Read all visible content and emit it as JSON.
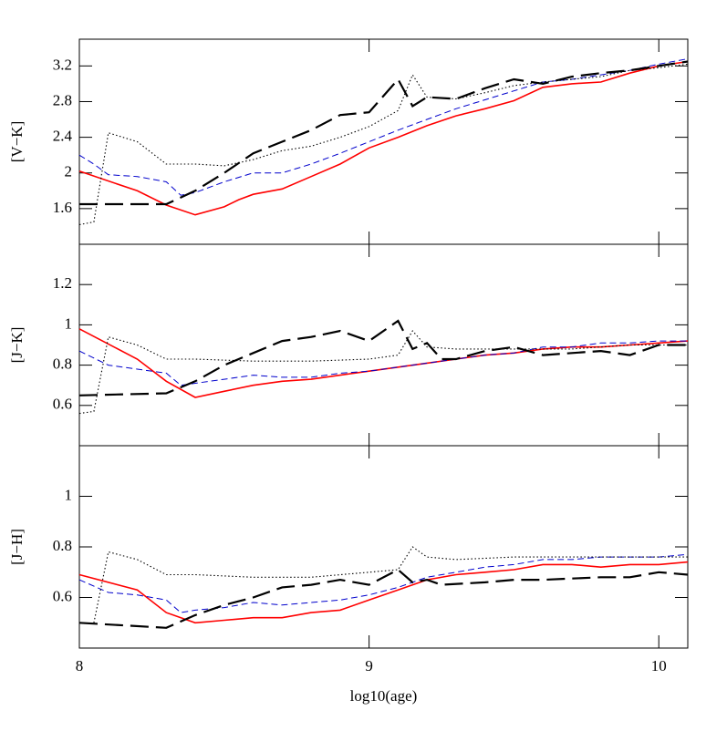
{
  "chart_data": [
    {
      "type": "line",
      "ylabel": "[V−K]",
      "xlim": [
        8,
        10.1
      ],
      "xticks": [
        8,
        9,
        10
      ],
      "ylim": [
        1.2,
        3.5
      ],
      "yticks": [
        1.6,
        2,
        2.4,
        2.8,
        3.2
      ],
      "series": [
        {
          "color": "#ff0000",
          "style": "solid",
          "x": [
            8.0,
            8.2,
            8.3,
            8.4,
            8.5,
            8.55,
            8.6,
            8.7,
            8.8,
            8.9,
            9.0,
            9.1,
            9.2,
            9.3,
            9.4,
            9.5,
            9.6,
            9.7,
            9.8,
            9.9,
            10.0,
            10.1
          ],
          "values": [
            2.02,
            1.8,
            1.64,
            1.53,
            1.62,
            1.7,
            1.76,
            1.82,
            1.96,
            2.1,
            2.28,
            2.4,
            2.53,
            2.64,
            2.72,
            2.81,
            2.96,
            3.0,
            3.02,
            3.12,
            3.2,
            3.25
          ]
        },
        {
          "color": "#0000cc",
          "style": "dashed",
          "x": [
            8.0,
            8.05,
            8.1,
            8.2,
            8.3,
            8.35,
            8.4,
            8.5,
            8.6,
            8.7,
            8.8,
            8.9,
            9.0,
            9.1,
            9.2,
            9.3,
            9.4,
            9.5,
            9.6,
            9.7,
            9.8,
            9.9,
            10.0,
            10.1
          ],
          "values": [
            2.2,
            2.1,
            1.98,
            1.96,
            1.9,
            1.75,
            1.78,
            1.9,
            2.0,
            2.0,
            2.1,
            2.22,
            2.35,
            2.48,
            2.6,
            2.72,
            2.82,
            2.92,
            3.02,
            3.05,
            3.1,
            3.15,
            3.22,
            3.28
          ]
        },
        {
          "color": "#000000",
          "style": "dotted",
          "x": [
            8.0,
            8.05,
            8.1,
            8.2,
            8.3,
            8.4,
            8.5,
            8.6,
            8.7,
            8.8,
            8.9,
            9.0,
            9.1,
            9.15,
            9.2,
            9.3,
            9.4,
            9.5,
            9.6,
            9.7,
            9.8,
            9.9,
            10.0,
            10.1
          ],
          "values": [
            1.42,
            1.45,
            2.45,
            2.35,
            2.1,
            2.1,
            2.08,
            2.15,
            2.25,
            2.3,
            2.4,
            2.52,
            2.7,
            3.1,
            2.85,
            2.83,
            2.9,
            2.98,
            3.02,
            3.05,
            3.08,
            3.15,
            3.18,
            3.22
          ]
        },
        {
          "color": "#000000",
          "style": "longdash",
          "x": [
            8.0,
            8.3,
            8.4,
            8.5,
            8.6,
            8.7,
            8.8,
            8.9,
            9.0,
            9.1,
            9.15,
            9.2,
            9.3,
            9.4,
            9.5,
            9.6,
            9.7,
            9.8,
            9.9,
            10.0,
            10.1
          ],
          "values": [
            1.65,
            1.65,
            1.8,
            2.0,
            2.22,
            2.35,
            2.48,
            2.65,
            2.68,
            3.05,
            2.75,
            2.85,
            2.83,
            2.95,
            3.05,
            3.0,
            3.08,
            3.12,
            3.15,
            3.2,
            3.25
          ]
        }
      ]
    },
    {
      "type": "line",
      "ylabel": "[J−K]",
      "xlim": [
        8,
        10.1
      ],
      "xticks": [
        8,
        9,
        10
      ],
      "ylim": [
        0.4,
        1.4
      ],
      "yticks": [
        0.6,
        0.8,
        1,
        1.2
      ],
      "series": [
        {
          "color": "#ff0000",
          "style": "solid",
          "x": [
            8.0,
            8.2,
            8.3,
            8.4,
            8.5,
            8.6,
            8.7,
            8.8,
            8.9,
            9.0,
            9.1,
            9.2,
            9.3,
            9.4,
            9.5,
            9.6,
            9.7,
            9.8,
            9.9,
            10.0,
            10.1
          ],
          "values": [
            0.98,
            0.83,
            0.72,
            0.64,
            0.67,
            0.7,
            0.72,
            0.73,
            0.75,
            0.77,
            0.79,
            0.81,
            0.83,
            0.85,
            0.86,
            0.88,
            0.89,
            0.89,
            0.9,
            0.91,
            0.92
          ]
        },
        {
          "color": "#0000cc",
          "style": "dashed",
          "x": [
            8.0,
            8.1,
            8.2,
            8.3,
            8.35,
            8.4,
            8.5,
            8.6,
            8.7,
            8.8,
            8.9,
            9.0,
            9.1,
            9.2,
            9.3,
            9.4,
            9.5,
            9.6,
            9.7,
            9.8,
            9.9,
            10.0,
            10.1
          ],
          "values": [
            0.87,
            0.8,
            0.78,
            0.76,
            0.7,
            0.71,
            0.73,
            0.75,
            0.74,
            0.74,
            0.76,
            0.77,
            0.79,
            0.81,
            0.83,
            0.85,
            0.86,
            0.89,
            0.89,
            0.91,
            0.91,
            0.92,
            0.92
          ]
        },
        {
          "color": "#000000",
          "style": "dotted",
          "x": [
            8.0,
            8.05,
            8.1,
            8.2,
            8.3,
            8.4,
            8.6,
            8.8,
            9.0,
            9.1,
            9.15,
            9.2,
            9.3,
            9.5,
            9.7,
            9.9,
            10.1
          ],
          "values": [
            0.56,
            0.57,
            0.94,
            0.9,
            0.83,
            0.83,
            0.82,
            0.82,
            0.83,
            0.85,
            0.97,
            0.89,
            0.88,
            0.88,
            0.88,
            0.9,
            0.9
          ]
        },
        {
          "color": "#000000",
          "style": "longdash",
          "x": [
            8.0,
            8.3,
            8.4,
            8.5,
            8.6,
            8.7,
            8.8,
            8.9,
            9.0,
            9.1,
            9.15,
            9.2,
            9.25,
            9.3,
            9.4,
            9.5,
            9.6,
            9.7,
            9.8,
            9.9,
            10.0,
            10.1
          ],
          "values": [
            0.65,
            0.66,
            0.72,
            0.8,
            0.86,
            0.92,
            0.94,
            0.97,
            0.92,
            1.02,
            0.88,
            0.91,
            0.83,
            0.83,
            0.87,
            0.89,
            0.85,
            0.86,
            0.87,
            0.85,
            0.9,
            0.9
          ]
        }
      ]
    },
    {
      "type": "line",
      "ylabel": "[J−H]",
      "xlabel": "log10(age)",
      "xlim": [
        8,
        10.1
      ],
      "xticks": [
        8,
        9,
        10
      ],
      "ylim": [
        0.4,
        1.2
      ],
      "yticks": [
        0.6,
        0.8,
        1
      ],
      "series": [
        {
          "color": "#ff0000",
          "style": "solid",
          "x": [
            8.0,
            8.2,
            8.3,
            8.4,
            8.5,
            8.6,
            8.7,
            8.8,
            8.9,
            9.0,
            9.1,
            9.2,
            9.3,
            9.4,
            9.5,
            9.6,
            9.7,
            9.8,
            9.9,
            10.0,
            10.1
          ],
          "values": [
            0.69,
            0.63,
            0.54,
            0.5,
            0.51,
            0.52,
            0.52,
            0.54,
            0.55,
            0.59,
            0.63,
            0.67,
            0.69,
            0.7,
            0.71,
            0.73,
            0.73,
            0.72,
            0.73,
            0.73,
            0.74
          ]
        },
        {
          "color": "#0000cc",
          "style": "dashed",
          "x": [
            8.0,
            8.1,
            8.2,
            8.3,
            8.35,
            8.4,
            8.5,
            8.6,
            8.7,
            8.8,
            8.9,
            9.0,
            9.1,
            9.2,
            9.3,
            9.4,
            9.5,
            9.6,
            9.7,
            9.8,
            9.9,
            10.0,
            10.1
          ],
          "values": [
            0.67,
            0.62,
            0.61,
            0.59,
            0.54,
            0.55,
            0.56,
            0.58,
            0.57,
            0.58,
            0.59,
            0.61,
            0.64,
            0.68,
            0.7,
            0.72,
            0.73,
            0.75,
            0.75,
            0.76,
            0.76,
            0.76,
            0.77
          ]
        },
        {
          "color": "#000000",
          "style": "dotted",
          "x": [
            8.05,
            8.1,
            8.2,
            8.3,
            8.4,
            8.6,
            8.8,
            9.0,
            9.1,
            9.15,
            9.2,
            9.3,
            9.5,
            9.7,
            9.9,
            10.1
          ],
          "values": [
            0.5,
            0.78,
            0.75,
            0.69,
            0.69,
            0.68,
            0.68,
            0.7,
            0.71,
            0.8,
            0.76,
            0.75,
            0.76,
            0.76,
            0.76,
            0.76
          ]
        },
        {
          "color": "#000000",
          "style": "longdash",
          "x": [
            8.0,
            8.3,
            8.4,
            8.5,
            8.6,
            8.7,
            8.8,
            8.9,
            9.0,
            9.1,
            9.15,
            9.2,
            9.25,
            9.4,
            9.5,
            9.6,
            9.8,
            9.9,
            10.0,
            10.1
          ],
          "values": [
            0.5,
            0.48,
            0.53,
            0.57,
            0.6,
            0.64,
            0.65,
            0.67,
            0.65,
            0.71,
            0.66,
            0.67,
            0.65,
            0.66,
            0.67,
            0.67,
            0.68,
            0.68,
            0.7,
            0.69
          ]
        }
      ]
    }
  ]
}
